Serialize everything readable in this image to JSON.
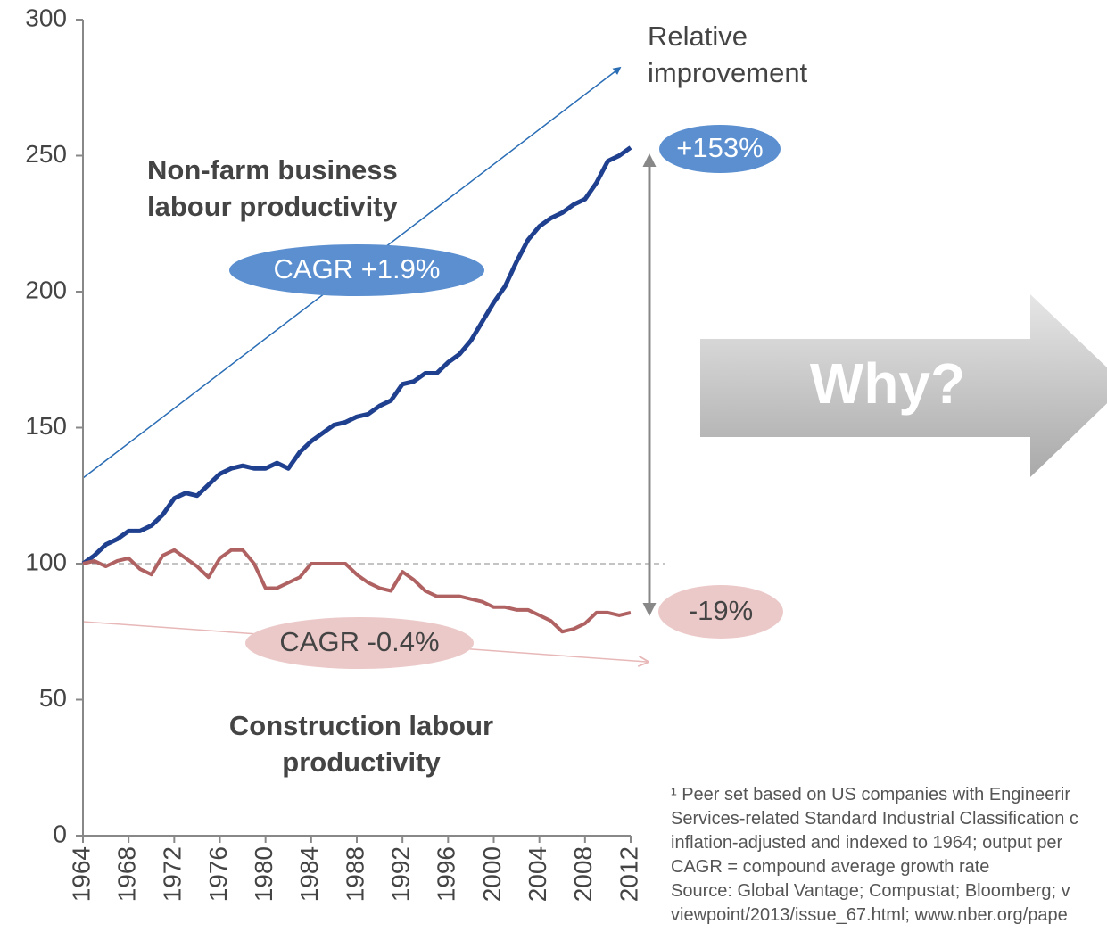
{
  "chart_data": {
    "type": "line",
    "x": [
      1964,
      1965,
      1966,
      1967,
      1968,
      1969,
      1970,
      1971,
      1972,
      1973,
      1974,
      1975,
      1976,
      1977,
      1978,
      1979,
      1980,
      1981,
      1982,
      1983,
      1984,
      1985,
      1986,
      1987,
      1988,
      1989,
      1990,
      1991,
      1992,
      1993,
      1994,
      1995,
      1996,
      1997,
      1998,
      1999,
      2000,
      2001,
      2002,
      2003,
      2004,
      2005,
      2006,
      2007,
      2008,
      2009,
      2010,
      2011,
      2012
    ],
    "series": [
      {
        "name": "Non-farm business labour productivity",
        "color": "#1f3f8f",
        "values": [
          100,
          103,
          107,
          109,
          112,
          112,
          114,
          118,
          124,
          126,
          125,
          129,
          133,
          135,
          136,
          135,
          135,
          137,
          135,
          141,
          145,
          148,
          151,
          152,
          154,
          155,
          158,
          160,
          166,
          167,
          170,
          170,
          174,
          177,
          182,
          189,
          196,
          202,
          211,
          219,
          224,
          227,
          229,
          232,
          234,
          240,
          248,
          250,
          253
        ]
      },
      {
        "name": "Construction labour productivity",
        "color": "#b06262",
        "values": [
          100,
          101,
          99,
          101,
          102,
          98,
          96,
          103,
          105,
          102,
          99,
          95,
          102,
          105,
          105,
          100,
          91,
          91,
          93,
          95,
          100,
          100,
          100,
          100,
          96,
          93,
          91,
          90,
          97,
          94,
          90,
          88,
          88,
          88,
          87,
          86,
          84,
          84,
          83,
          83,
          81,
          79,
          75,
          76,
          78,
          82,
          82,
          81,
          82
        ]
      }
    ],
    "xlim": [
      1964,
      2012
    ],
    "xticks": [
      1964,
      1968,
      1972,
      1976,
      1980,
      1984,
      1988,
      1992,
      1996,
      2000,
      2004,
      2008,
      2012
    ],
    "ylim": [
      0,
      300
    ],
    "yticks": [
      0,
      50,
      100,
      150,
      200,
      250,
      300
    ],
    "grid": false,
    "annotations": {
      "relative": "Relative improvement",
      "cagr_up": "CAGR +1.9%",
      "cagr_down": "CAGR -0.4%",
      "gain": "+153%",
      "loss": "-19%",
      "why": "Why?"
    },
    "footnote": [
      "¹ Peer set based on US companies with Engineerir",
      "Services-related Standard Industrial Classification c",
      "inflation-adjusted and indexed to 1964; output per",
      "CAGR = compound average growth rate",
      "Source: Global Vantage; Compustat; Bloomberg; v",
      "viewpoint/2013/issue_67.html; www.nber.org/pape"
    ]
  }
}
